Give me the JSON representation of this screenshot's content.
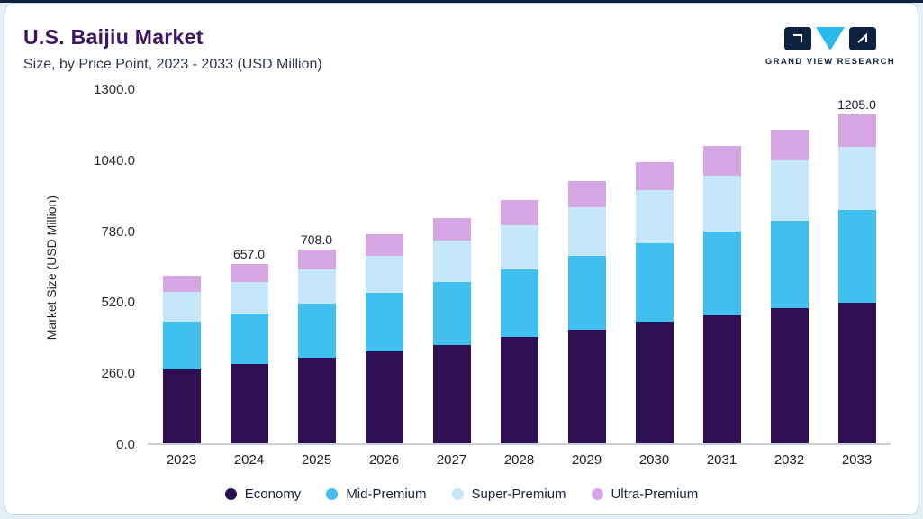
{
  "header": {
    "title": "U.S. Baijiu Market",
    "subtitle": "Size, by Price Point, 2023 - 2033 (USD Million)"
  },
  "brand": {
    "logo_text": "GRAND VIEW RESEARCH",
    "navy": "#0d2240",
    "cyan": "#2ab9ea"
  },
  "chart_data": {
    "type": "bar",
    "stacked": true,
    "title": "U.S. Baijiu Market",
    "subtitle": "Size, by Price Point, 2023 - 2033 (USD Million)",
    "ylabel": "Market Size (USD Million)",
    "xlabel": "",
    "ylim": [
      0,
      1300
    ],
    "yticks": [
      0.0,
      260.0,
      520.0,
      780.0,
      1040.0,
      1300.0
    ],
    "grid": false,
    "legend_position": "bottom",
    "categories": [
      "2023",
      "2024",
      "2025",
      "2026",
      "2027",
      "2028",
      "2029",
      "2030",
      "2031",
      "2032",
      "2033"
    ],
    "series": [
      {
        "name": "Economy",
        "color": "#2e1052",
        "values": [
          272,
          290,
          312,
          336,
          361,
          388,
          417,
          446,
          470,
          494,
          515
        ]
      },
      {
        "name": "Mid-Premium",
        "color": "#41c0f0",
        "values": [
          172,
          184,
          198,
          214,
          231,
          249,
          269,
          288,
          305,
          322,
          338
        ]
      },
      {
        "name": "Super-Premium",
        "color": "#c4e8fa",
        "values": [
          110,
          118,
          127,
          138,
          150,
          163,
          177,
          192,
          205,
          219,
          233
        ]
      },
      {
        "name": "Ultra-Premium",
        "color": "#d7a7e5",
        "values": [
          61,
          65,
          71,
          77,
          83,
          90,
          97,
          104,
          110,
          115,
          119
        ]
      }
    ],
    "totals": [
      615,
      657,
      708,
      765,
      825,
      890,
      960,
      1030,
      1090,
      1150,
      1205
    ],
    "bar_labels": [
      "",
      "657.0",
      "708.0",
      "",
      "",
      "",
      "",
      "",
      "",
      "",
      "1205.0"
    ]
  }
}
